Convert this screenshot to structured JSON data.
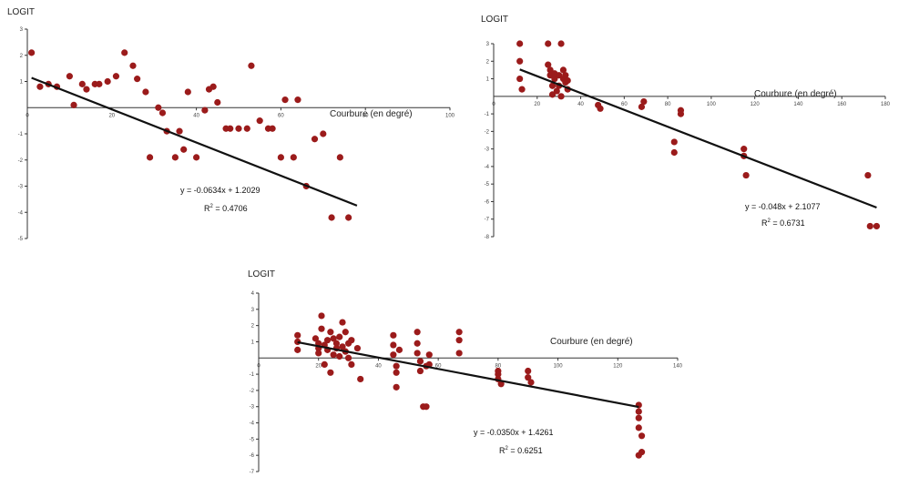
{
  "colors": {
    "point": "#9b1b1b",
    "trendline": "#111111",
    "axis": "#333333"
  },
  "chart_data": [
    {
      "type": "scatter",
      "ylabel": "LOGIT",
      "xlabel": "Courbure (en degré)",
      "xlim": [
        0,
        100
      ],
      "ylim": [
        -5,
        3
      ],
      "xticks": [
        0,
        20,
        40,
        60,
        80,
        100
      ],
      "yticks": [
        -5,
        -4,
        -3,
        -2,
        -1,
        1,
        2,
        3
      ],
      "equation": "y = -0.0634x + 1.2029",
      "r2_prefix": "R",
      "r2_value": " = 0.4706",
      "trendline": {
        "slope": -0.0634,
        "intercept": 1.2029,
        "x_range": [
          1,
          78
        ]
      },
      "points": [
        {
          "x": 1,
          "y": 2.1
        },
        {
          "x": 3,
          "y": 0.8
        },
        {
          "x": 5,
          "y": 0.9
        },
        {
          "x": 7,
          "y": 0.8
        },
        {
          "x": 10,
          "y": 1.2
        },
        {
          "x": 11,
          "y": 0.1
        },
        {
          "x": 13,
          "y": 0.9
        },
        {
          "x": 14,
          "y": 0.7
        },
        {
          "x": 16,
          "y": 0.9
        },
        {
          "x": 17,
          "y": 0.9
        },
        {
          "x": 19,
          "y": 1.0
        },
        {
          "x": 21,
          "y": 1.2
        },
        {
          "x": 23,
          "y": 2.1
        },
        {
          "x": 25,
          "y": 1.6
        },
        {
          "x": 26,
          "y": 1.1
        },
        {
          "x": 28,
          "y": 0.6
        },
        {
          "x": 29,
          "y": -1.9
        },
        {
          "x": 31,
          "y": 0.0
        },
        {
          "x": 32,
          "y": -0.2
        },
        {
          "x": 33,
          "y": -0.9
        },
        {
          "x": 35,
          "y": -1.9
        },
        {
          "x": 36,
          "y": -0.9
        },
        {
          "x": 37,
          "y": -1.6
        },
        {
          "x": 38,
          "y": 0.6
        },
        {
          "x": 40,
          "y": -1.9
        },
        {
          "x": 42,
          "y": -0.1
        },
        {
          "x": 43,
          "y": 0.7
        },
        {
          "x": 44,
          "y": 0.8
        },
        {
          "x": 45,
          "y": 0.2
        },
        {
          "x": 47,
          "y": -0.8
        },
        {
          "x": 48,
          "y": -0.8
        },
        {
          "x": 50,
          "y": -0.8
        },
        {
          "x": 52,
          "y": -0.8
        },
        {
          "x": 53,
          "y": 1.6
        },
        {
          "x": 55,
          "y": -0.5
        },
        {
          "x": 57,
          "y": -0.8
        },
        {
          "x": 58,
          "y": -0.8
        },
        {
          "x": 60,
          "y": -1.9
        },
        {
          "x": 61,
          "y": 0.3
        },
        {
          "x": 63,
          "y": -1.9
        },
        {
          "x": 64,
          "y": 0.3
        },
        {
          "x": 66,
          "y": -3.0
        },
        {
          "x": 68,
          "y": -1.2
        },
        {
          "x": 70,
          "y": -1.0
        },
        {
          "x": 72,
          "y": -4.2
        },
        {
          "x": 74,
          "y": -1.9
        },
        {
          "x": 76,
          "y": -4.2
        }
      ]
    },
    {
      "type": "scatter",
      "ylabel": "LOGIT",
      "xlabel": "Courbure (en degré)",
      "xlim": [
        0,
        180
      ],
      "ylim": [
        -8,
        3
      ],
      "xticks": [
        0,
        20,
        40,
        60,
        80,
        100,
        120,
        140,
        160,
        180
      ],
      "yticks": [
        -8,
        -7,
        -6,
        -5,
        -4,
        -3,
        -2,
        -1,
        1,
        2,
        3
      ],
      "equation": "y = -0.048x + 2.1077",
      "r2_prefix": "R",
      "r2_value": " = 0.6731",
      "trendline": {
        "slope": -0.048,
        "intercept": 2.1077,
        "x_range": [
          12,
          176
        ]
      },
      "points": [
        {
          "x": 12,
          "y": 3.0
        },
        {
          "x": 12,
          "y": 2.0
        },
        {
          "x": 12,
          "y": 1.0
        },
        {
          "x": 13,
          "y": 0.4
        },
        {
          "x": 25,
          "y": 3.0
        },
        {
          "x": 25,
          "y": 1.8
        },
        {
          "x": 26,
          "y": 1.5
        },
        {
          "x": 26,
          "y": 1.2
        },
        {
          "x": 27,
          "y": 0.6
        },
        {
          "x": 27,
          "y": 0.1
        },
        {
          "x": 28,
          "y": 1.0
        },
        {
          "x": 28,
          "y": 1.3
        },
        {
          "x": 29,
          "y": 0.3
        },
        {
          "x": 30,
          "y": 1.2
        },
        {
          "x": 30,
          "y": 0.6
        },
        {
          "x": 31,
          "y": 0.0
        },
        {
          "x": 31,
          "y": 3.0
        },
        {
          "x": 32,
          "y": 1.0
        },
        {
          "x": 32,
          "y": 1.5
        },
        {
          "x": 33,
          "y": 0.8
        },
        {
          "x": 33,
          "y": 1.2
        },
        {
          "x": 34,
          "y": 0.9
        },
        {
          "x": 34,
          "y": 0.4
        },
        {
          "x": 48,
          "y": -0.5
        },
        {
          "x": 49,
          "y": -0.7
        },
        {
          "x": 68,
          "y": -0.6
        },
        {
          "x": 69,
          "y": -0.3
        },
        {
          "x": 83,
          "y": -2.6
        },
        {
          "x": 83,
          "y": -3.2
        },
        {
          "x": 86,
          "y": -1.0
        },
        {
          "x": 86,
          "y": -0.8
        },
        {
          "x": 115,
          "y": -3.0
        },
        {
          "x": 115,
          "y": -3.4
        },
        {
          "x": 116,
          "y": -4.5
        },
        {
          "x": 172,
          "y": -4.5
        },
        {
          "x": 173,
          "y": -7.4
        },
        {
          "x": 176,
          "y": -7.4
        }
      ]
    },
    {
      "type": "scatter",
      "ylabel": "LOGIT",
      "xlabel": "Courbure (en degré)",
      "xlim": [
        0,
        140
      ],
      "ylim": [
        -7,
        4
      ],
      "xticks": [
        0,
        20,
        40,
        60,
        80,
        100,
        120,
        140
      ],
      "yticks": [
        -7,
        -6,
        -5,
        -4,
        -3,
        -2,
        -1,
        1,
        2,
        3,
        4
      ],
      "equation": "y = -0.0350x + 1.4261",
      "r2_prefix": "R",
      "r2_value": " = 0.6251",
      "trendline": {
        "slope": -0.035,
        "intercept": 1.4261,
        "x_range": [
          13,
          127
        ]
      },
      "points": [
        {
          "x": 13,
          "y": 0.5
        },
        {
          "x": 13,
          "y": 1.0
        },
        {
          "x": 13,
          "y": 1.4
        },
        {
          "x": 19,
          "y": 1.2
        },
        {
          "x": 20,
          "y": 0.6
        },
        {
          "x": 20,
          "y": 0.3
        },
        {
          "x": 20,
          "y": 0.9
        },
        {
          "x": 21,
          "y": 2.6
        },
        {
          "x": 21,
          "y": 1.8
        },
        {
          "x": 22,
          "y": -0.4
        },
        {
          "x": 22,
          "y": 0.8
        },
        {
          "x": 23,
          "y": 1.1
        },
        {
          "x": 23,
          "y": 0.5
        },
        {
          "x": 24,
          "y": -0.9
        },
        {
          "x": 24,
          "y": 1.6
        },
        {
          "x": 25,
          "y": 1.2
        },
        {
          "x": 25,
          "y": 0.2
        },
        {
          "x": 26,
          "y": 0.9
        },
        {
          "x": 26,
          "y": 0.6
        },
        {
          "x": 27,
          "y": 0.1
        },
        {
          "x": 27,
          "y": 1.3
        },
        {
          "x": 28,
          "y": 0.7
        },
        {
          "x": 28,
          "y": 2.2
        },
        {
          "x": 29,
          "y": 1.6
        },
        {
          "x": 29,
          "y": 0.4
        },
        {
          "x": 30,
          "y": 0.9
        },
        {
          "x": 30,
          "y": 0.0
        },
        {
          "x": 31,
          "y": -0.4
        },
        {
          "x": 31,
          "y": 1.1
        },
        {
          "x": 33,
          "y": 0.6
        },
        {
          "x": 34,
          "y": -1.3
        },
        {
          "x": 45,
          "y": 1.4
        },
        {
          "x": 45,
          "y": 0.8
        },
        {
          "x": 45,
          "y": 0.2
        },
        {
          "x": 46,
          "y": -0.5
        },
        {
          "x": 46,
          "y": -0.9
        },
        {
          "x": 46,
          "y": -1.8
        },
        {
          "x": 47,
          "y": 0.5
        },
        {
          "x": 53,
          "y": 1.6
        },
        {
          "x": 53,
          "y": 0.9
        },
        {
          "x": 53,
          "y": 0.3
        },
        {
          "x": 54,
          "y": -0.2
        },
        {
          "x": 54,
          "y": -0.8
        },
        {
          "x": 55,
          "y": -3.0
        },
        {
          "x": 56,
          "y": -0.5
        },
        {
          "x": 56,
          "y": -3.0
        },
        {
          "x": 57,
          "y": 0.2
        },
        {
          "x": 57,
          "y": -0.4
        },
        {
          "x": 67,
          "y": 1.6
        },
        {
          "x": 67,
          "y": 1.1
        },
        {
          "x": 67,
          "y": 0.3
        },
        {
          "x": 80,
          "y": -0.8
        },
        {
          "x": 80,
          "y": -1.0
        },
        {
          "x": 80,
          "y": -1.3
        },
        {
          "x": 81,
          "y": -1.6
        },
        {
          "x": 90,
          "y": -0.8
        },
        {
          "x": 90,
          "y": -1.2
        },
        {
          "x": 91,
          "y": -1.5
        },
        {
          "x": 127,
          "y": -2.9
        },
        {
          "x": 127,
          "y": -3.3
        },
        {
          "x": 127,
          "y": -3.7
        },
        {
          "x": 127,
          "y": -4.3
        },
        {
          "x": 128,
          "y": -4.8
        },
        {
          "x": 128,
          "y": -5.8
        },
        {
          "x": 127,
          "y": -6.0
        }
      ]
    }
  ]
}
